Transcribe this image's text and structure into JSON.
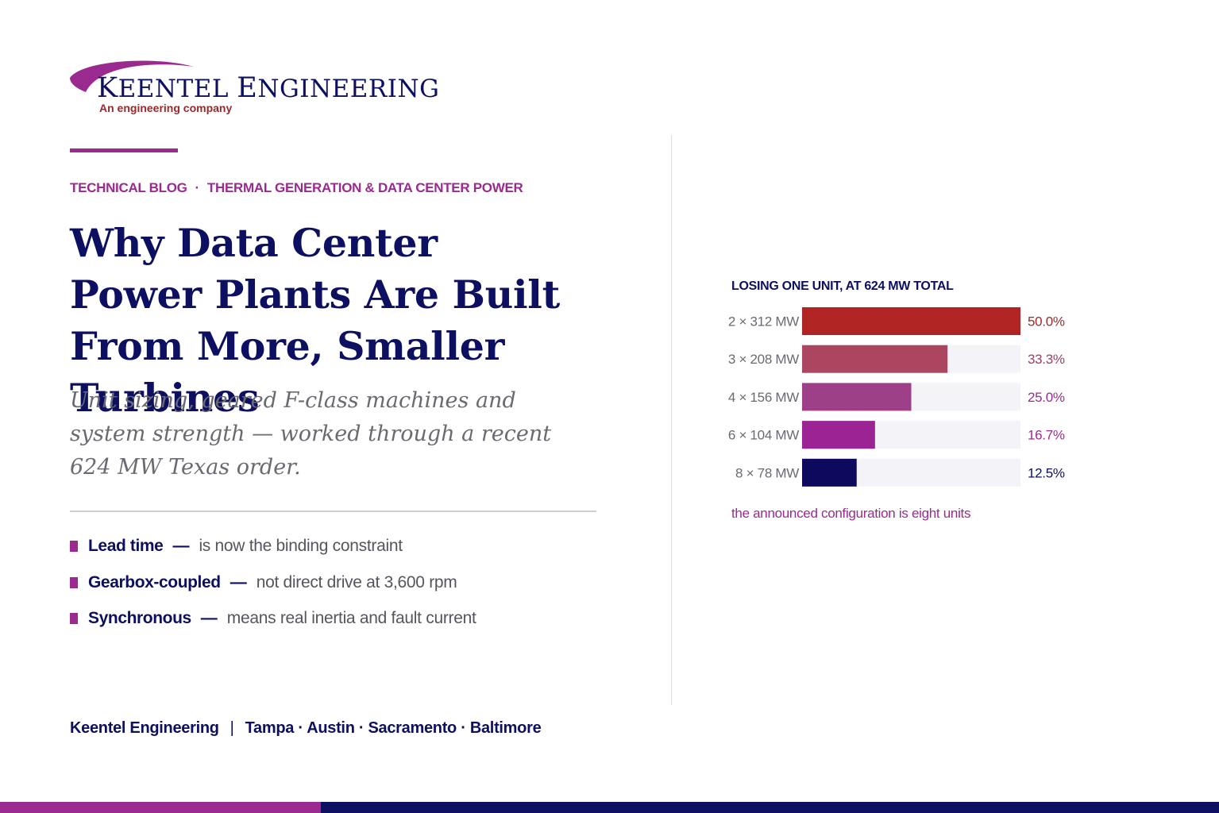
{
  "brand": {
    "name_parts": [
      "K",
      "EENTEL ",
      "E",
      "NGINEERING"
    ],
    "tagline": "An engineering company",
    "colors": {
      "navy": "#0d1060",
      "magenta": "#9b2a90",
      "tagline_red": "#9a2a2a"
    }
  },
  "kicker": {
    "section": "TECHNICAL BLOG",
    "separator": "·",
    "topic": "THERMAL GENERATION & DATA CENTER POWER"
  },
  "headline": "Why Data Center Power Plants Are Built From More, Smaller Turbines",
  "subhead": "Unit sizing, geared F-class machines and system strength — worked through a recent 624 MW Texas order.",
  "bullets": [
    {
      "term": "Lead time",
      "dash": "—",
      "desc": "is now the binding constraint"
    },
    {
      "term": "Gearbox-coupled",
      "dash": "—",
      "desc": "not direct drive at 3,600 rpm"
    },
    {
      "term": "Synchronous",
      "dash": "—",
      "desc": "means real inertia and fault current"
    }
  ],
  "footer": {
    "company": "Keentel Engineering",
    "separator": "|",
    "locations": "Tampa · Austin · Sacramento · Baltimore"
  },
  "chart_data": {
    "type": "bar",
    "orientation": "horizontal",
    "title": "LOSING ONE UNIT, AT 624 MW TOTAL",
    "categories": [
      "2 × 312 MW",
      "3 × 208 MW",
      "4 × 156 MW",
      "6 × 104 MW",
      "8 × 78 MW"
    ],
    "values": [
      50.0,
      33.3,
      25.0,
      16.7,
      12.5
    ],
    "value_labels": [
      "50.0%",
      "33.3%",
      "25.0%",
      "16.7%",
      "12.5%"
    ],
    "xlim": [
      0,
      50
    ],
    "bar_colors": [
      "#b02424",
      "#ac4660",
      "#9e4088",
      "#9c2393",
      "#0d0a5e"
    ],
    "label_colors": [
      "#9a2a2a",
      "#9e3f60",
      "#9b2a90",
      "#9b2a90",
      "#0d1060"
    ],
    "track_color": "#f4f3f8",
    "note": "the announced configuration is eight units"
  }
}
